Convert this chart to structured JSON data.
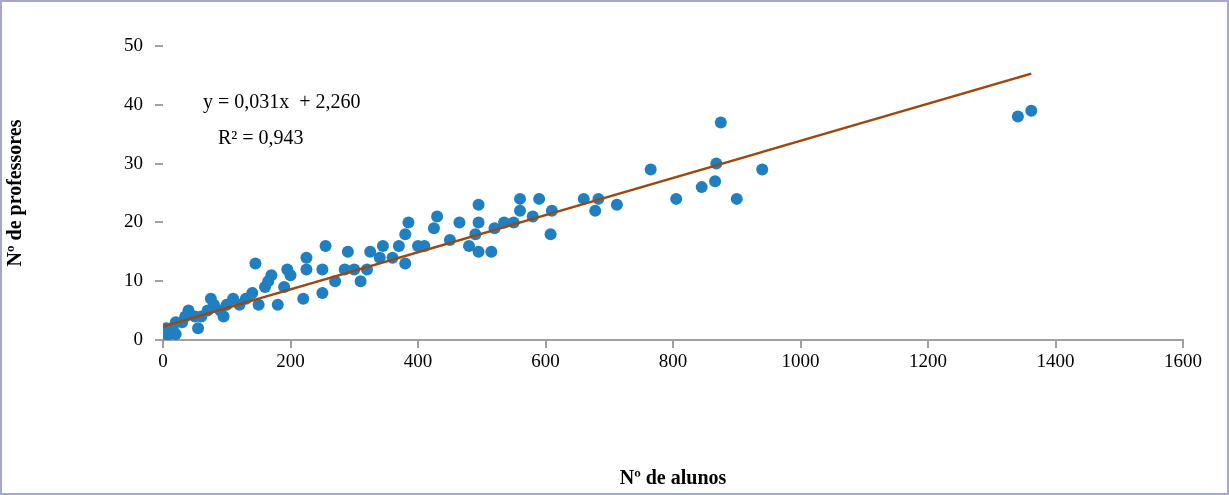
{
  "chart_data": {
    "type": "scatter",
    "xlabel": "Nº de alunos",
    "ylabel": "Nº de professores",
    "xlim": [
      0,
      1600
    ],
    "xticks": [
      0,
      200,
      400,
      600,
      800,
      1000,
      1200,
      1400,
      1600
    ],
    "ylim": [
      0,
      50
    ],
    "yticks": [
      0,
      10,
      20,
      30,
      40,
      50
    ],
    "grid": false,
    "legend": false,
    "marker": "circle",
    "annotations": [
      "y = 0,031x  + 2,260",
      "R² = 0,943"
    ],
    "series": [
      {
        "color": "#1f7fc0",
        "x": [
          1362,
          1341,
          940,
          900,
          875,
          868,
          866,
          845,
          805,
          765,
          712,
          683,
          678,
          660,
          610,
          608,
          590,
          580,
          560,
          560,
          550,
          535,
          520,
          515,
          495,
          495,
          495,
          490,
          480,
          465,
          450,
          430,
          425,
          410,
          400,
          385,
          380,
          380,
          370,
          360,
          345,
          340,
          325,
          320,
          310,
          300,
          290,
          285,
          270,
          255,
          250,
          250,
          225,
          225,
          220,
          200,
          195,
          190,
          180,
          170,
          165,
          160,
          150,
          145,
          140,
          130,
          120,
          110,
          100,
          95,
          90,
          80,
          75,
          70,
          60,
          55,
          50,
          40,
          35,
          30,
          20,
          15,
          10,
          5,
          5,
          20
        ],
        "values": [
          39,
          38,
          29,
          24,
          37,
          30,
          27,
          26,
          24,
          29,
          23,
          24,
          22,
          24,
          22,
          18,
          24,
          21,
          24,
          22,
          20,
          20,
          19,
          15,
          23,
          20,
          15,
          18,
          16,
          20,
          17,
          21,
          19,
          16,
          16,
          20,
          18,
          13,
          16,
          14,
          16,
          14,
          15,
          12,
          10,
          12,
          15,
          12,
          10,
          16,
          12,
          8,
          14,
          12,
          7,
          11,
          12,
          9,
          6,
          11,
          10,
          9,
          6,
          13,
          8,
          7,
          6,
          7,
          6,
          4,
          5,
          6,
          7,
          5,
          4,
          2,
          4,
          5,
          4,
          3,
          3,
          2,
          1,
          1,
          2,
          1
        ]
      },
      {
        "type": "line",
        "color": "#9e480e",
        "marker": "none",
        "x": [
          0,
          1362
        ],
        "values": [
          2.3,
          45.3
        ]
      }
    ]
  }
}
